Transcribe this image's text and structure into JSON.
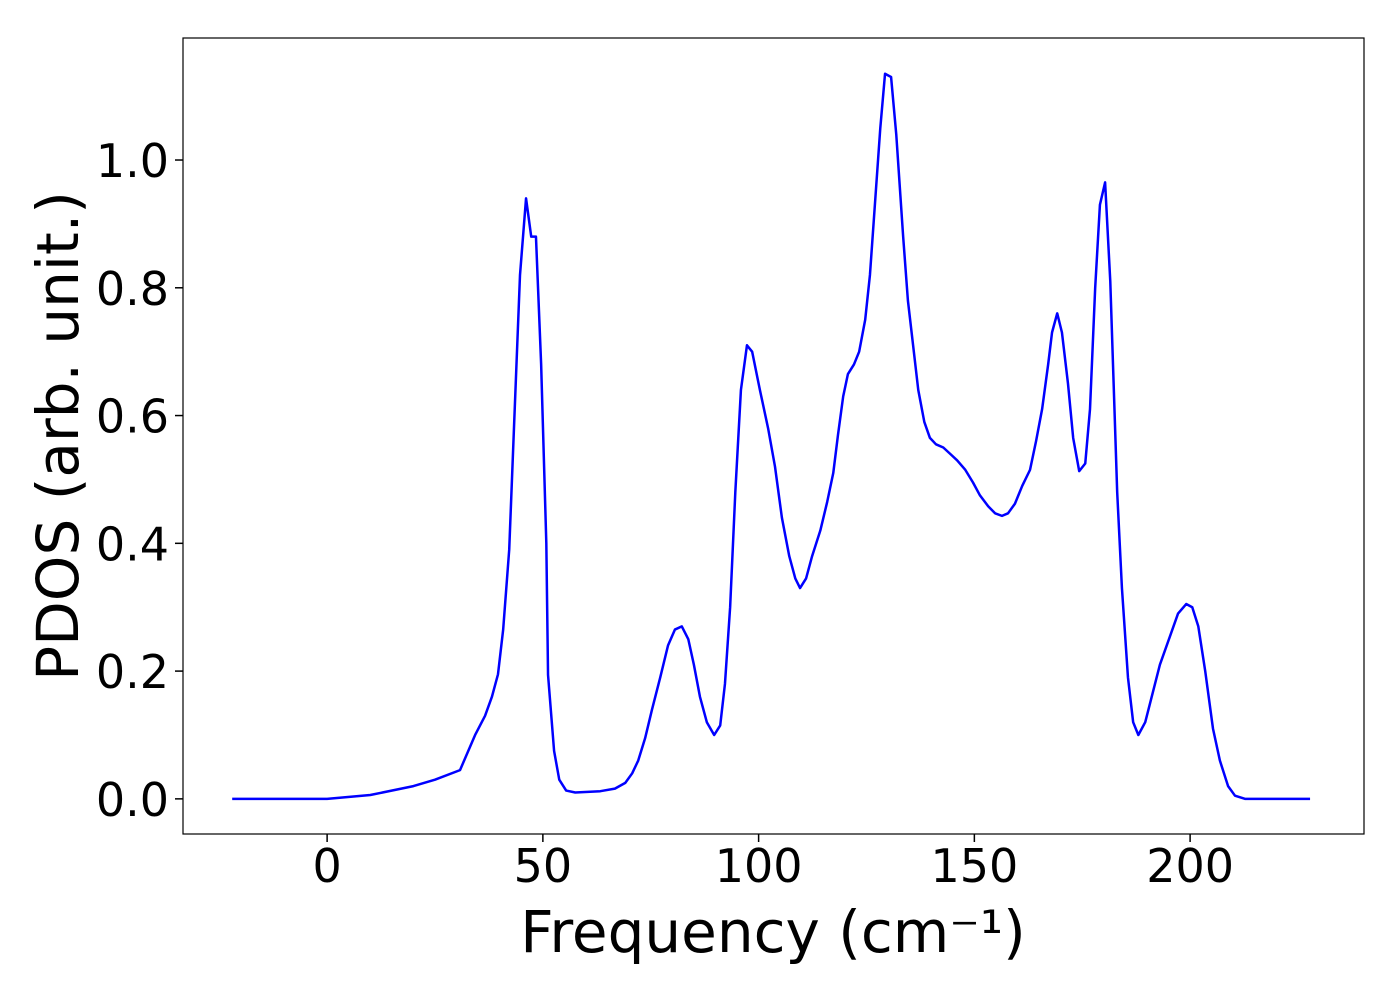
{
  "chart_data": {
    "type": "line",
    "xlabel": "Frequency (cm⁻¹)",
    "ylabel": "PDOS (arb. unit.)",
    "x": [
      -22,
      -10,
      0,
      10,
      20,
      25,
      30.8,
      34.3,
      36.6,
      38.2,
      39.6,
      40.8,
      42.2,
      43.3,
      44.7,
      46.1,
      47.3,
      48.4,
      49.6,
      50.8,
      51.2,
      52.6,
      53.8,
      55.4,
      57.5,
      63.3,
      66.7,
      69.1,
      70.7,
      72.1,
      73.7,
      75.3,
      77.2,
      79,
      80.6,
      82.2,
      83.7,
      85,
      86.4,
      88,
      89.7,
      91.1,
      92.2,
      93.4,
      94.6,
      95.9,
      97.3,
      98.5,
      100.3,
      102.2,
      103.8,
      105.4,
      107.1,
      108.5,
      109.6,
      111,
      112.4,
      114.3,
      115.9,
      117.3,
      118.4,
      119.6,
      120.7,
      122.1,
      123.3,
      124.7,
      125.8,
      128.2,
      129.3,
      130.7,
      131.9,
      133.5,
      134.6,
      135.8,
      137,
      138.4,
      139.7,
      141.1,
      142.8,
      144.4,
      146,
      147.9,
      149.7,
      151.3,
      153.2,
      154.8,
      156.4,
      157.8,
      159.4,
      161.1,
      162.9,
      164.3,
      165.7,
      167.1,
      168,
      169.2,
      170.3,
      171.7,
      172.9,
      174.3,
      175.7,
      176.8,
      178,
      179.1,
      180.3,
      181.5,
      183.1,
      184.2,
      185.6,
      186.8,
      188,
      189.6,
      193,
      197.2,
      199.1,
      200.5,
      201.9,
      203.5,
      205.3,
      206.9,
      208.8,
      210.4,
      212.7,
      227.8
    ],
    "series": [
      {
        "name": "PDOS",
        "color": "#0000ff",
        "values": [
          0,
          0,
          0,
          0.006,
          0.02,
          0.03,
          0.045,
          0.1,
          0.13,
          0.16,
          0.195,
          0.265,
          0.39,
          0.58,
          0.82,
          0.94,
          0.88,
          0.88,
          0.68,
          0.4,
          0.194,
          0.075,
          0.03,
          0.013,
          0.01,
          0.012,
          0.016,
          0.025,
          0.04,
          0.06,
          0.095,
          0.14,
          0.19,
          0.24,
          0.265,
          0.27,
          0.25,
          0.21,
          0.16,
          0.12,
          0.1,
          0.115,
          0.18,
          0.3,
          0.48,
          0.64,
          0.71,
          0.7,
          0.64,
          0.58,
          0.52,
          0.44,
          0.38,
          0.345,
          0.33,
          0.345,
          0.38,
          0.42,
          0.465,
          0.51,
          0.57,
          0.63,
          0.665,
          0.68,
          0.7,
          0.75,
          0.82,
          1.05,
          1.135,
          1.13,
          1.04,
          0.88,
          0.78,
          0.71,
          0.64,
          0.59,
          0.565,
          0.555,
          0.55,
          0.54,
          0.53,
          0.515,
          0.495,
          0.475,
          0.458,
          0.447,
          0.443,
          0.447,
          0.462,
          0.49,
          0.515,
          0.56,
          0.61,
          0.68,
          0.73,
          0.76,
          0.73,
          0.65,
          0.565,
          0.513,
          0.525,
          0.61,
          0.8,
          0.93,
          0.965,
          0.81,
          0.48,
          0.33,
          0.19,
          0.12,
          0.1,
          0.12,
          0.21,
          0.29,
          0.305,
          0.3,
          0.27,
          0.2,
          0.11,
          0.06,
          0.02,
          0.005,
          0,
          0
        ]
      }
    ],
    "xlim": [
      -33.4,
      240.3
    ],
    "xticks": [
      0,
      50,
      100,
      150,
      200
    ],
    "ylim": [
      -0.055,
      1.191
    ],
    "yticks": [
      {
        "value": 0,
        "label": "0.0"
      },
      {
        "value": 0.2,
        "label": "0.2"
      },
      {
        "value": 0.4,
        "label": "0.4"
      },
      {
        "value": 0.6,
        "label": "0.6"
      },
      {
        "value": 0.8,
        "label": "0.8"
      },
      {
        "value": 1,
        "label": "1.0"
      }
    ],
    "grid": false
  }
}
